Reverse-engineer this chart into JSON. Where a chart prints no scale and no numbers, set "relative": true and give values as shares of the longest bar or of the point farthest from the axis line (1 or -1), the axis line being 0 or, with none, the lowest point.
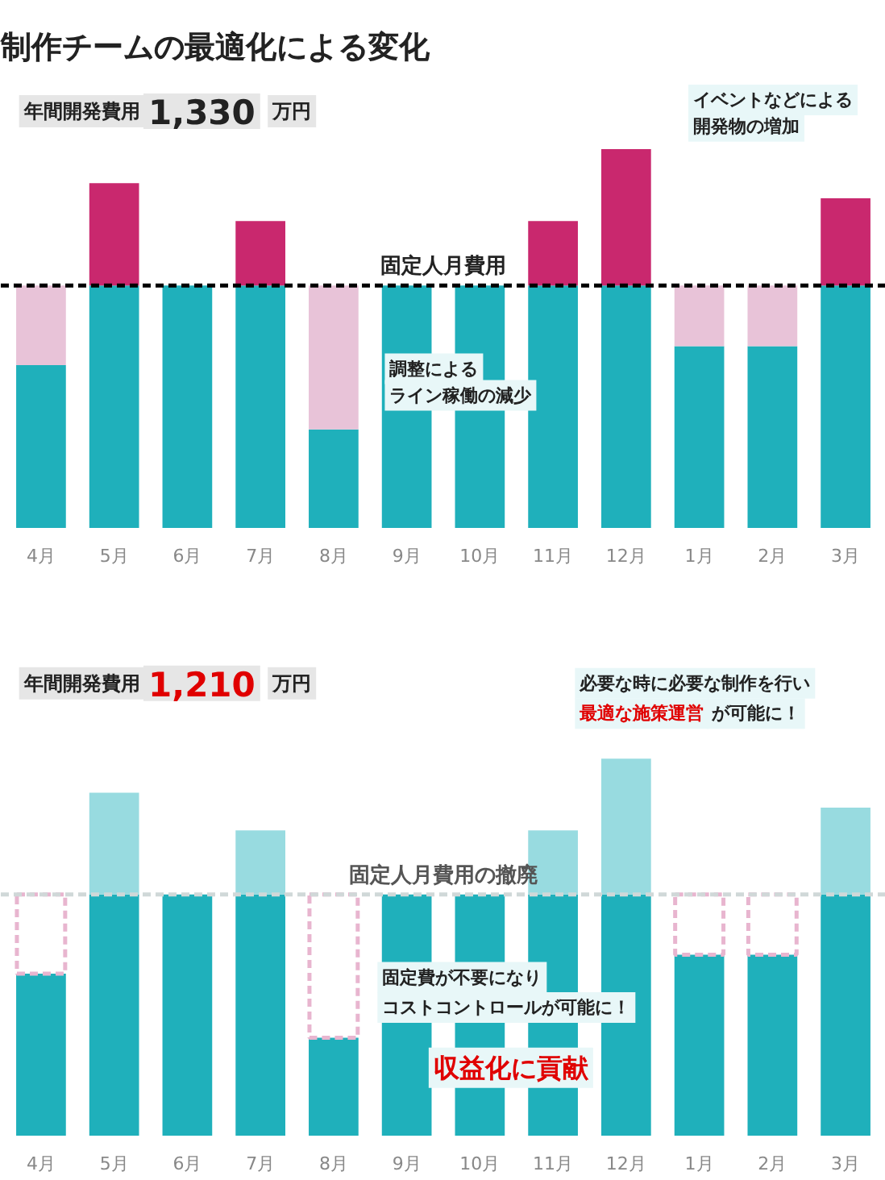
{
  "chart_data": [
    {
      "type": "bar",
      "title": "制作チームの最適化による変化",
      "categories": [
        "4月",
        "5月",
        "6月",
        "7月",
        "8月",
        "9月",
        "10月",
        "11月",
        "12月",
        "1月",
        "2月",
        "3月"
      ],
      "relative": true,
      "stacked": true,
      "grid": false,
      "series": [
        {
          "color": "#1fb0bb",
          "values": [
            0.43,
            0.64,
            0.64,
            0.64,
            0.26,
            0.64,
            0.64,
            0.64,
            0.64,
            0.48,
            0.48,
            0.64
          ]
        },
        {
          "color": "#c9286e",
          "values": [
            null,
            0.27,
            null,
            0.17,
            null,
            null,
            null,
            0.17,
            0.36,
            null,
            null,
            0.23
          ]
        },
        {
          "color": "#e8c3d8",
          "values": [
            0.21,
            null,
            null,
            null,
            0.38,
            null,
            null,
            null,
            null,
            0.16,
            0.16,
            null
          ]
        }
      ],
      "ref_lines": [
        {
          "axis": "y",
          "value": 0.64,
          "label": "固定人月費用",
          "color": "#000000",
          "line_style": "dashed"
        }
      ],
      "annotations": [
        "年間開発費用",
        "1,330",
        "万円",
        "イベントなどによる",
        "開発物の増加",
        "調整による",
        "ライン稼働の減少"
      ]
    },
    {
      "type": "bar",
      "categories": [
        "4月",
        "5月",
        "6月",
        "7月",
        "8月",
        "9月",
        "10月",
        "11月",
        "12月",
        "1月",
        "2月",
        "3月"
      ],
      "relative": true,
      "stacked": true,
      "grid": false,
      "series": [
        {
          "color": "#1fb0bb",
          "values": [
            0.43,
            0.64,
            0.64,
            0.64,
            0.26,
            0.64,
            0.64,
            0.64,
            0.64,
            0.48,
            0.48,
            0.64
          ]
        },
        {
          "color": "#98dbe0",
          "values": [
            null,
            0.27,
            null,
            0.17,
            null,
            null,
            null,
            0.17,
            0.36,
            null,
            null,
            0.23
          ]
        },
        {
          "color": "#e8b5cf",
          "line_style": "dashed",
          "values": [
            0.21,
            null,
            null,
            null,
            0.38,
            null,
            null,
            null,
            null,
            0.16,
            0.16,
            null
          ]
        }
      ],
      "ref_lines": [
        {
          "axis": "y",
          "value": 0.64,
          "label": "固定人月費用の撤廃",
          "color": "#d0d8d8",
          "line_style": "dashed"
        }
      ],
      "annotations": [
        "年間開発費用",
        "1,210",
        "万円",
        "必要な時に必要な制作を行い",
        "最適な施策運営",
        "が可能に！",
        "固定費が不要になり",
        "コストコントロールが可能に！",
        "収益化に貢献"
      ]
    }
  ]
}
